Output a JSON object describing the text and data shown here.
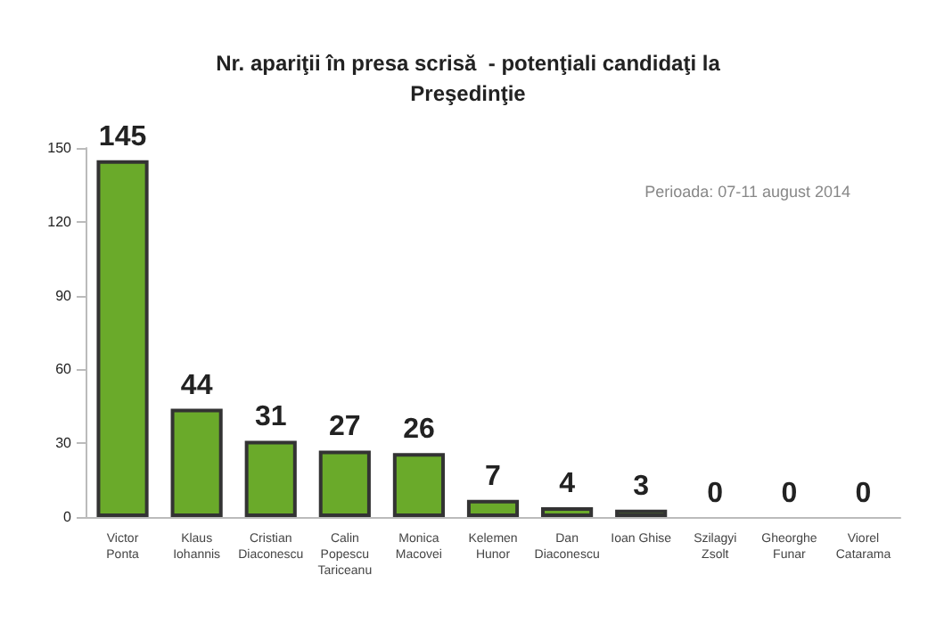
{
  "chart_data": {
    "type": "bar",
    "title": "Nr. apariţii în presa scrisă  - potenţiali candidaţi la\nPreşedinţie",
    "categories": [
      "Victor\nPonta",
      "Klaus\nIohannis",
      "Cristian\nDiaconescu",
      "Calin\nPopescu\nTariceanu",
      "Monica\nMacovei",
      "Kelemen\nHunor",
      "Dan\nDiaconescu",
      "Ioan Ghise",
      "Szilagyi\nZsolt",
      "Gheorghe\nFunar",
      "Viorel\nCatarama"
    ],
    "values": [
      145,
      44,
      31,
      27,
      26,
      7,
      4,
      3,
      0,
      0,
      0
    ],
    "color": "#6aaa2a",
    "ylim": [
      0,
      150
    ],
    "yticks": [
      0,
      30,
      60,
      90,
      120,
      150
    ],
    "grid": false,
    "data_labels": true,
    "annotations": [
      "Perioada: 07-11 august 2014"
    ]
  }
}
